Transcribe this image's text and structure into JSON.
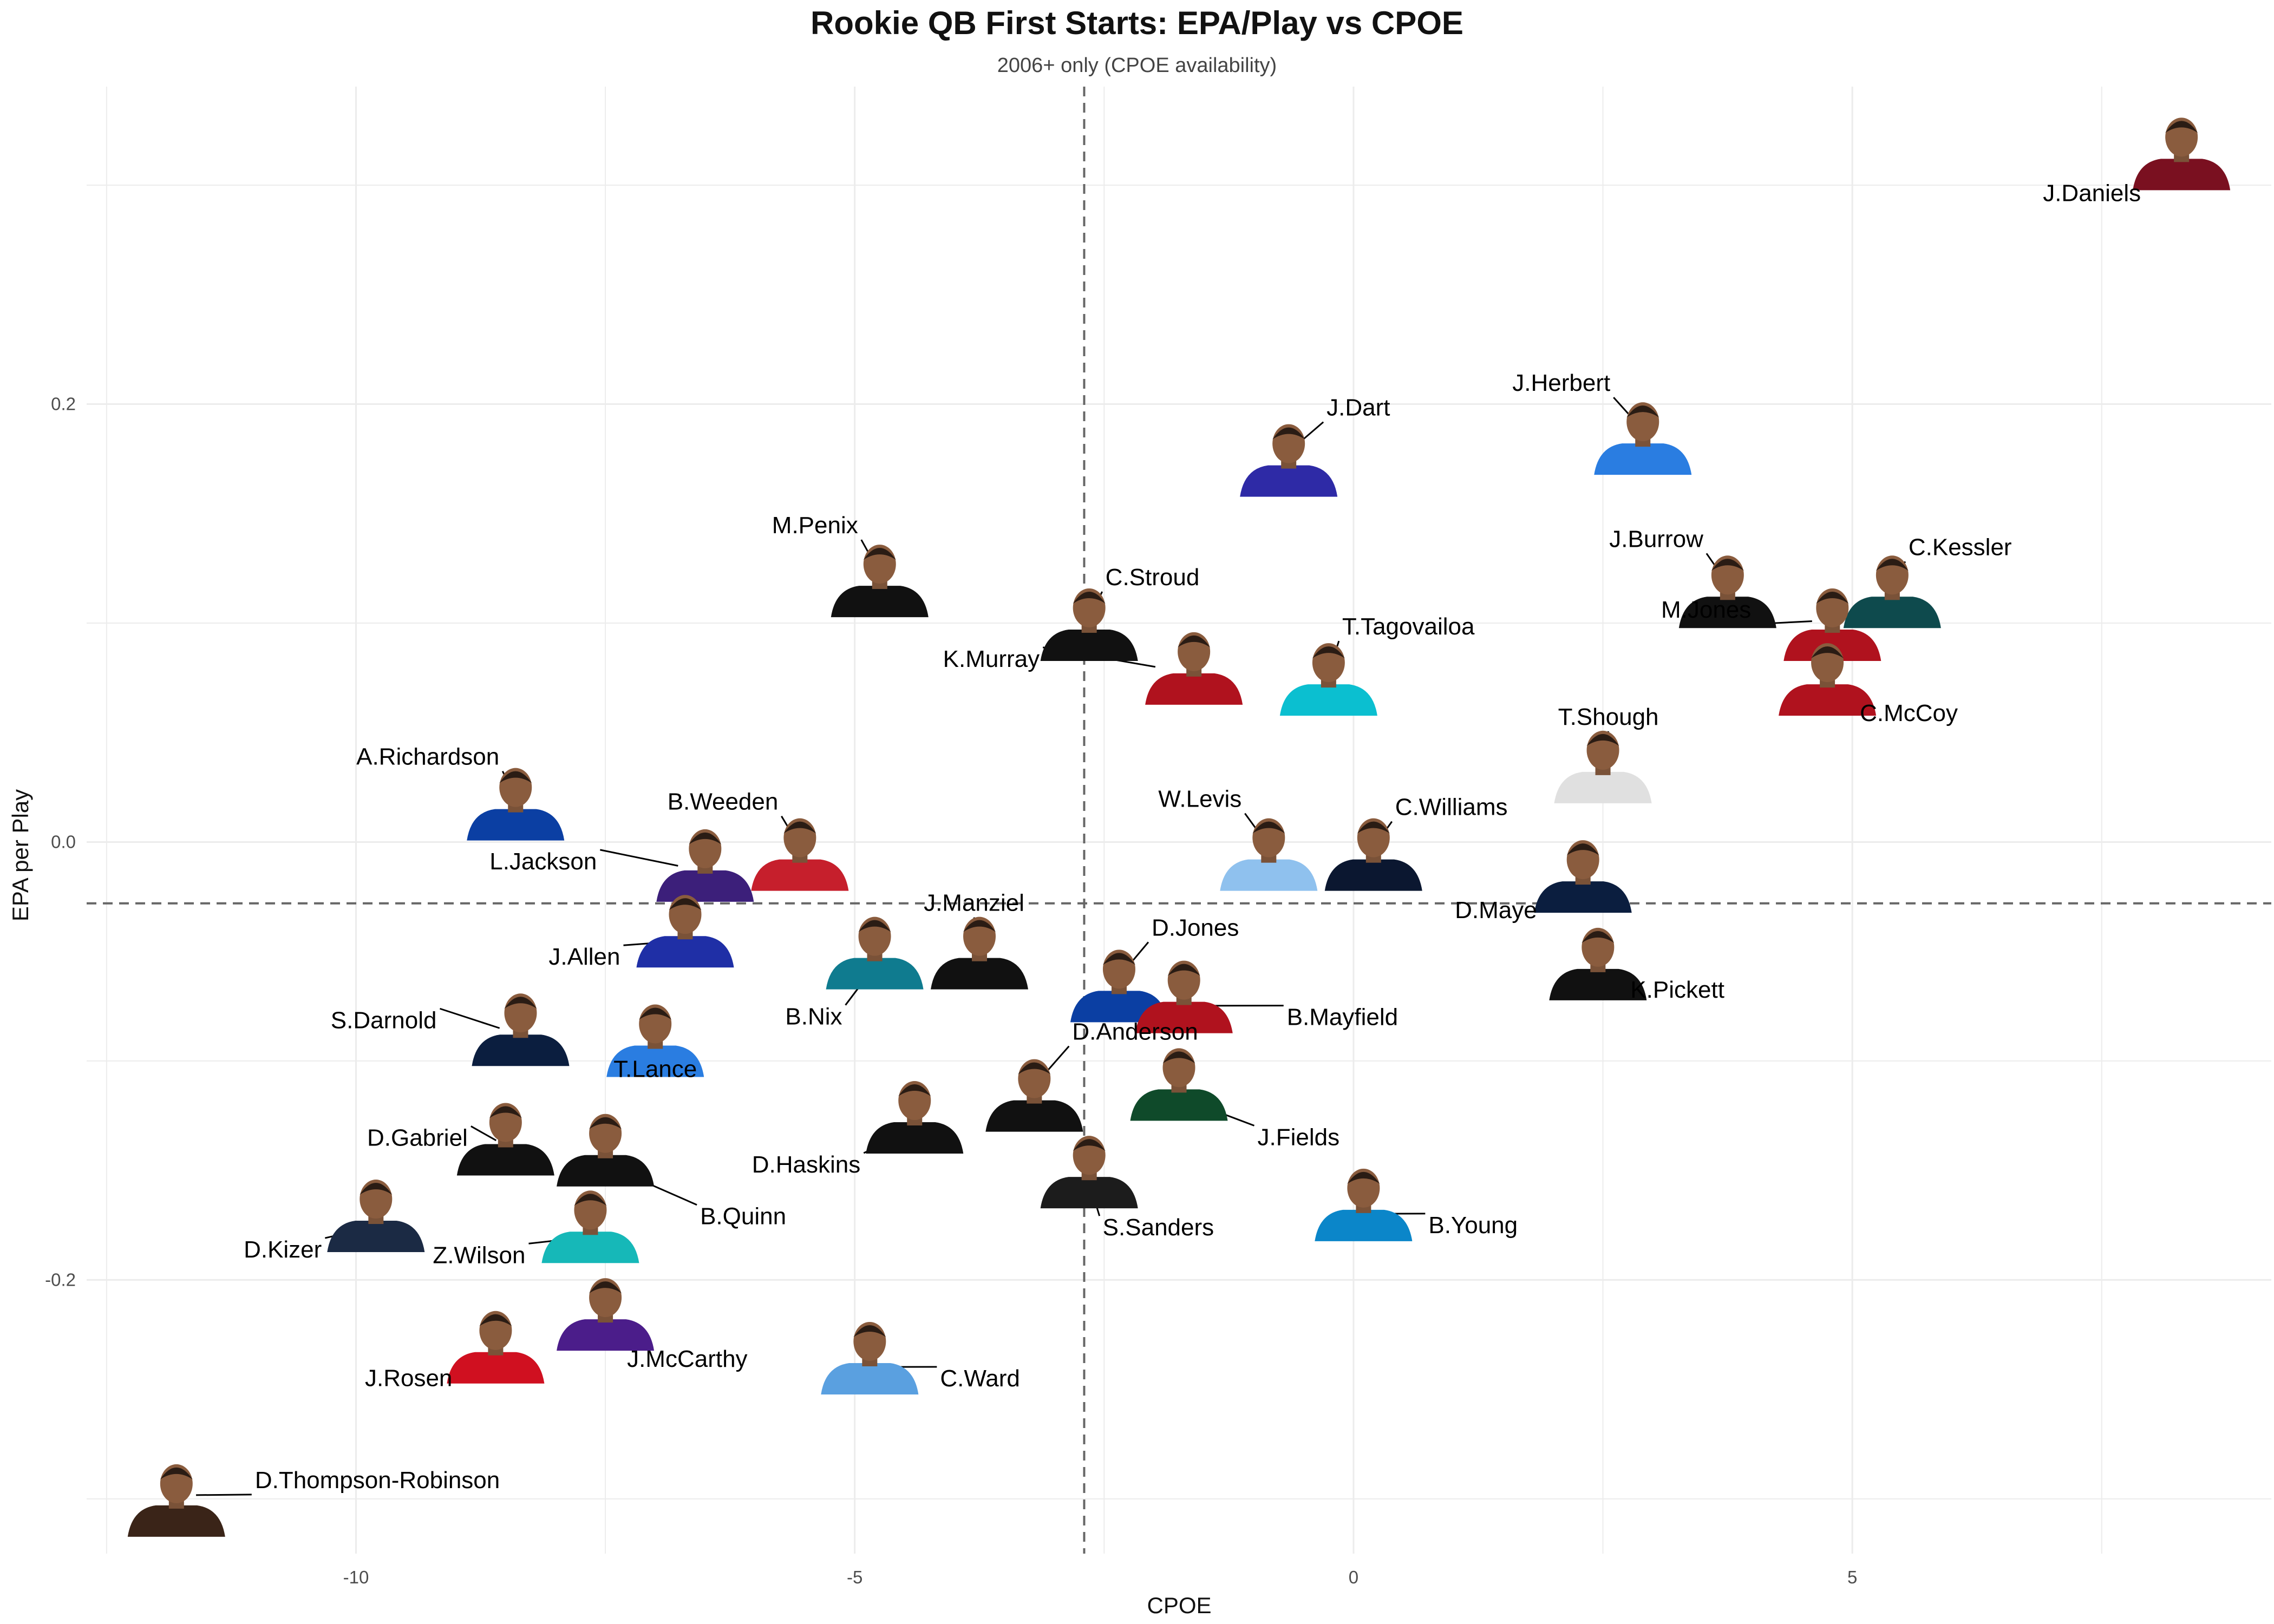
{
  "chart_data": {
    "type": "scatter",
    "title": "Rookie QB First Starts: EPA/Play vs CPOE",
    "subtitle": "2006+ only (CPOE availability)",
    "xlabel": "CPOE",
    "ylabel": "EPA per Play",
    "xlim": [
      -12.7,
      9.2
    ],
    "ylim": [
      -0.325,
      0.345
    ],
    "x_ticks": [
      -10,
      -5,
      0,
      5
    ],
    "x_tick_labels": [
      "-10",
      "-5",
      "0",
      "5"
    ],
    "y_ticks": [
      -0.2,
      0.0,
      0.2
    ],
    "y_tick_labels": [
      "-0.2",
      "0.0",
      "0.2"
    ],
    "grid": true,
    "reference_lines": {
      "vertical_x": -2.7,
      "horizontal_y": -0.028
    },
    "points": [
      {
        "name": "J.Daniels",
        "x": 8.3,
        "y": 0.315,
        "jersey": "#7a1020",
        "label_dx": -75,
        "label_dy": 90
      },
      {
        "name": "J.Herbert",
        "x": 2.9,
        "y": 0.185,
        "jersey": "#2a7de1",
        "label_dx": -60,
        "label_dy": -85
      },
      {
        "name": "J.Dart",
        "x": -0.65,
        "y": 0.175,
        "jersey": "#2e2aa6",
        "label_dx": 70,
        "label_dy": -80
      },
      {
        "name": "M.Penix",
        "x": -4.75,
        "y": 0.12,
        "jersey": "#111111",
        "label_dx": -40,
        "label_dy": -85
      },
      {
        "name": "C.Stroud",
        "x": -2.65,
        "y": 0.1,
        "jersey": "#111111",
        "label_dx": 30,
        "label_dy": -70
      },
      {
        "name": "J.Burrow",
        "x": 3.75,
        "y": 0.115,
        "jersey": "#111111",
        "label_dx": -45,
        "label_dy": -80
      },
      {
        "name": "C.Kessler",
        "x": 5.4,
        "y": 0.115,
        "jersey": "#0e4a4d",
        "label_dx": 30,
        "label_dy": -65
      },
      {
        "name": "M.Jones",
        "x": 4.8,
        "y": 0.1,
        "jersey": "#b0121e",
        "label_dx": -150,
        "label_dy": -10
      },
      {
        "name": "K.Murray",
        "x": -1.6,
        "y": 0.08,
        "jersey": "#b0121e",
        "label_dx": -285,
        "label_dy": 0
      },
      {
        "name": "T.Tagovailoa",
        "x": -0.25,
        "y": 0.075,
        "jersey": "#0bbfd0",
        "label_dx": 25,
        "label_dy": -80
      },
      {
        "name": "C.McCoy",
        "x": 4.75,
        "y": 0.075,
        "jersey": "#b0121e",
        "label_dx": 60,
        "label_dy": 80
      },
      {
        "name": "A.Richardson",
        "x": -8.4,
        "y": 0.018,
        "jersey": "#0b3fa3",
        "label_dx": -30,
        "label_dy": -70
      },
      {
        "name": "B.Weeden",
        "x": -5.55,
        "y": -0.005,
        "jersey": "#c61f2c",
        "label_dx": -40,
        "label_dy": -80
      },
      {
        "name": "W.Levis",
        "x": -0.85,
        "y": -0.005,
        "jersey": "#8fc1ee",
        "label_dx": -50,
        "label_dy": -85
      },
      {
        "name": "C.Williams",
        "x": 0.2,
        "y": -0.005,
        "jersey": "#0b1730",
        "label_dx": 40,
        "label_dy": -70
      },
      {
        "name": "T.Shough",
        "x": 2.5,
        "y": 0.035,
        "jersey": "#e0e0e0",
        "label_dx": 10,
        "label_dy": -75
      },
      {
        "name": "L.Jackson",
        "x": -6.5,
        "y": -0.01,
        "jersey": "#3c1f7a",
        "label_dx": -200,
        "label_dy": 10
      },
      {
        "name": "D.Maye",
        "x": 2.3,
        "y": -0.015,
        "jersey": "#0b1e3f",
        "label_dx": -85,
        "label_dy": 80
      },
      {
        "name": "J.Manziel",
        "x": -3.75,
        "y": -0.05,
        "jersey": "#111111",
        "label_dx": -10,
        "label_dy": -75
      },
      {
        "name": "B.Nix",
        "x": -4.8,
        "y": -0.05,
        "jersey": "#0f7b8f",
        "label_dx": -60,
        "label_dy": 135
      },
      {
        "name": "J.Allen",
        "x": -6.7,
        "y": -0.04,
        "jersey": "#1f2fa6",
        "label_dx": -120,
        "label_dy": 65
      },
      {
        "name": "K.Pickett",
        "x": 2.45,
        "y": -0.055,
        "jersey": "#111111",
        "label_dx": 60,
        "label_dy": 65
      },
      {
        "name": "D.Jones",
        "x": -2.35,
        "y": -0.065,
        "jersey": "#0b3fa3",
        "label_dx": 60,
        "label_dy": -90
      },
      {
        "name": "B.Mayfield",
        "x": -1.7,
        "y": -0.07,
        "jersey": "#b0121e",
        "label_dx": 190,
        "label_dy": 55
      },
      {
        "name": "S.Darnold",
        "x": -8.35,
        "y": -0.085,
        "jersey": "#0b1e3f",
        "label_dx": -155,
        "label_dy": 0
      },
      {
        "name": "T.Lance",
        "x": -7.0,
        "y": -0.09,
        "jersey": "#2a7de1",
        "label_dx": 0,
        "label_dy": 70
      },
      {
        "name": "D.Anderson",
        "x": -3.2,
        "y": -0.115,
        "jersey": "#111111",
        "label_dx": 70,
        "label_dy": -100
      },
      {
        "name": "B.Young",
        "x": 0.1,
        "y": -0.165,
        "jersey": "#0b86c9",
        "label_dx": 120,
        "label_dy": 55
      },
      {
        "name": "J.Fields",
        "x": -1.75,
        "y": -0.11,
        "jersey": "#0f4a2a",
        "label_dx": 145,
        "label_dy": 115
      },
      {
        "name": "D.Haskins",
        "x": -4.4,
        "y": -0.125,
        "jersey": "#111111",
        "label_dx": -100,
        "label_dy": 105
      },
      {
        "name": "S.Sanders",
        "x": -2.65,
        "y": -0.15,
        "jersey": "#1c1c1c",
        "label_dx": 25,
        "label_dy": 120
      },
      {
        "name": "D.Gabriel",
        "x": -8.5,
        "y": -0.135,
        "jersey": "#111111",
        "label_dx": -70,
        "label_dy": 15
      },
      {
        "name": "B.Quinn",
        "x": -7.5,
        "y": -0.14,
        "jersey": "#111111",
        "label_dx": 175,
        "label_dy": 140
      },
      {
        "name": "D.Kizer",
        "x": -9.8,
        "y": -0.17,
        "jersey": "#1b2a44",
        "label_dx": -100,
        "label_dy": 80
      },
      {
        "name": "Z.Wilson",
        "x": -7.65,
        "y": -0.175,
        "jersey": "#16b8b8",
        "label_dx": -120,
        "label_dy": 70
      },
      {
        "name": "J.Rosen",
        "x": -8.6,
        "y": -0.23,
        "jersey": "#d01020",
        "label_dx": -80,
        "label_dy": 75
      },
      {
        "name": "J.McCarthy",
        "x": -7.5,
        "y": -0.215,
        "jersey": "#4b1d8a",
        "label_dx": 40,
        "label_dy": 100
      },
      {
        "name": "C.Ward",
        "x": -4.85,
        "y": -0.235,
        "jersey": "#5aa0e0",
        "label_dx": 130,
        "label_dy": 55
      },
      {
        "name": "D.Thompson-Robinson",
        "x": -11.8,
        "y": -0.3,
        "jersey": "#3a2418",
        "label_dx": 145,
        "label_dy": -20
      }
    ]
  }
}
